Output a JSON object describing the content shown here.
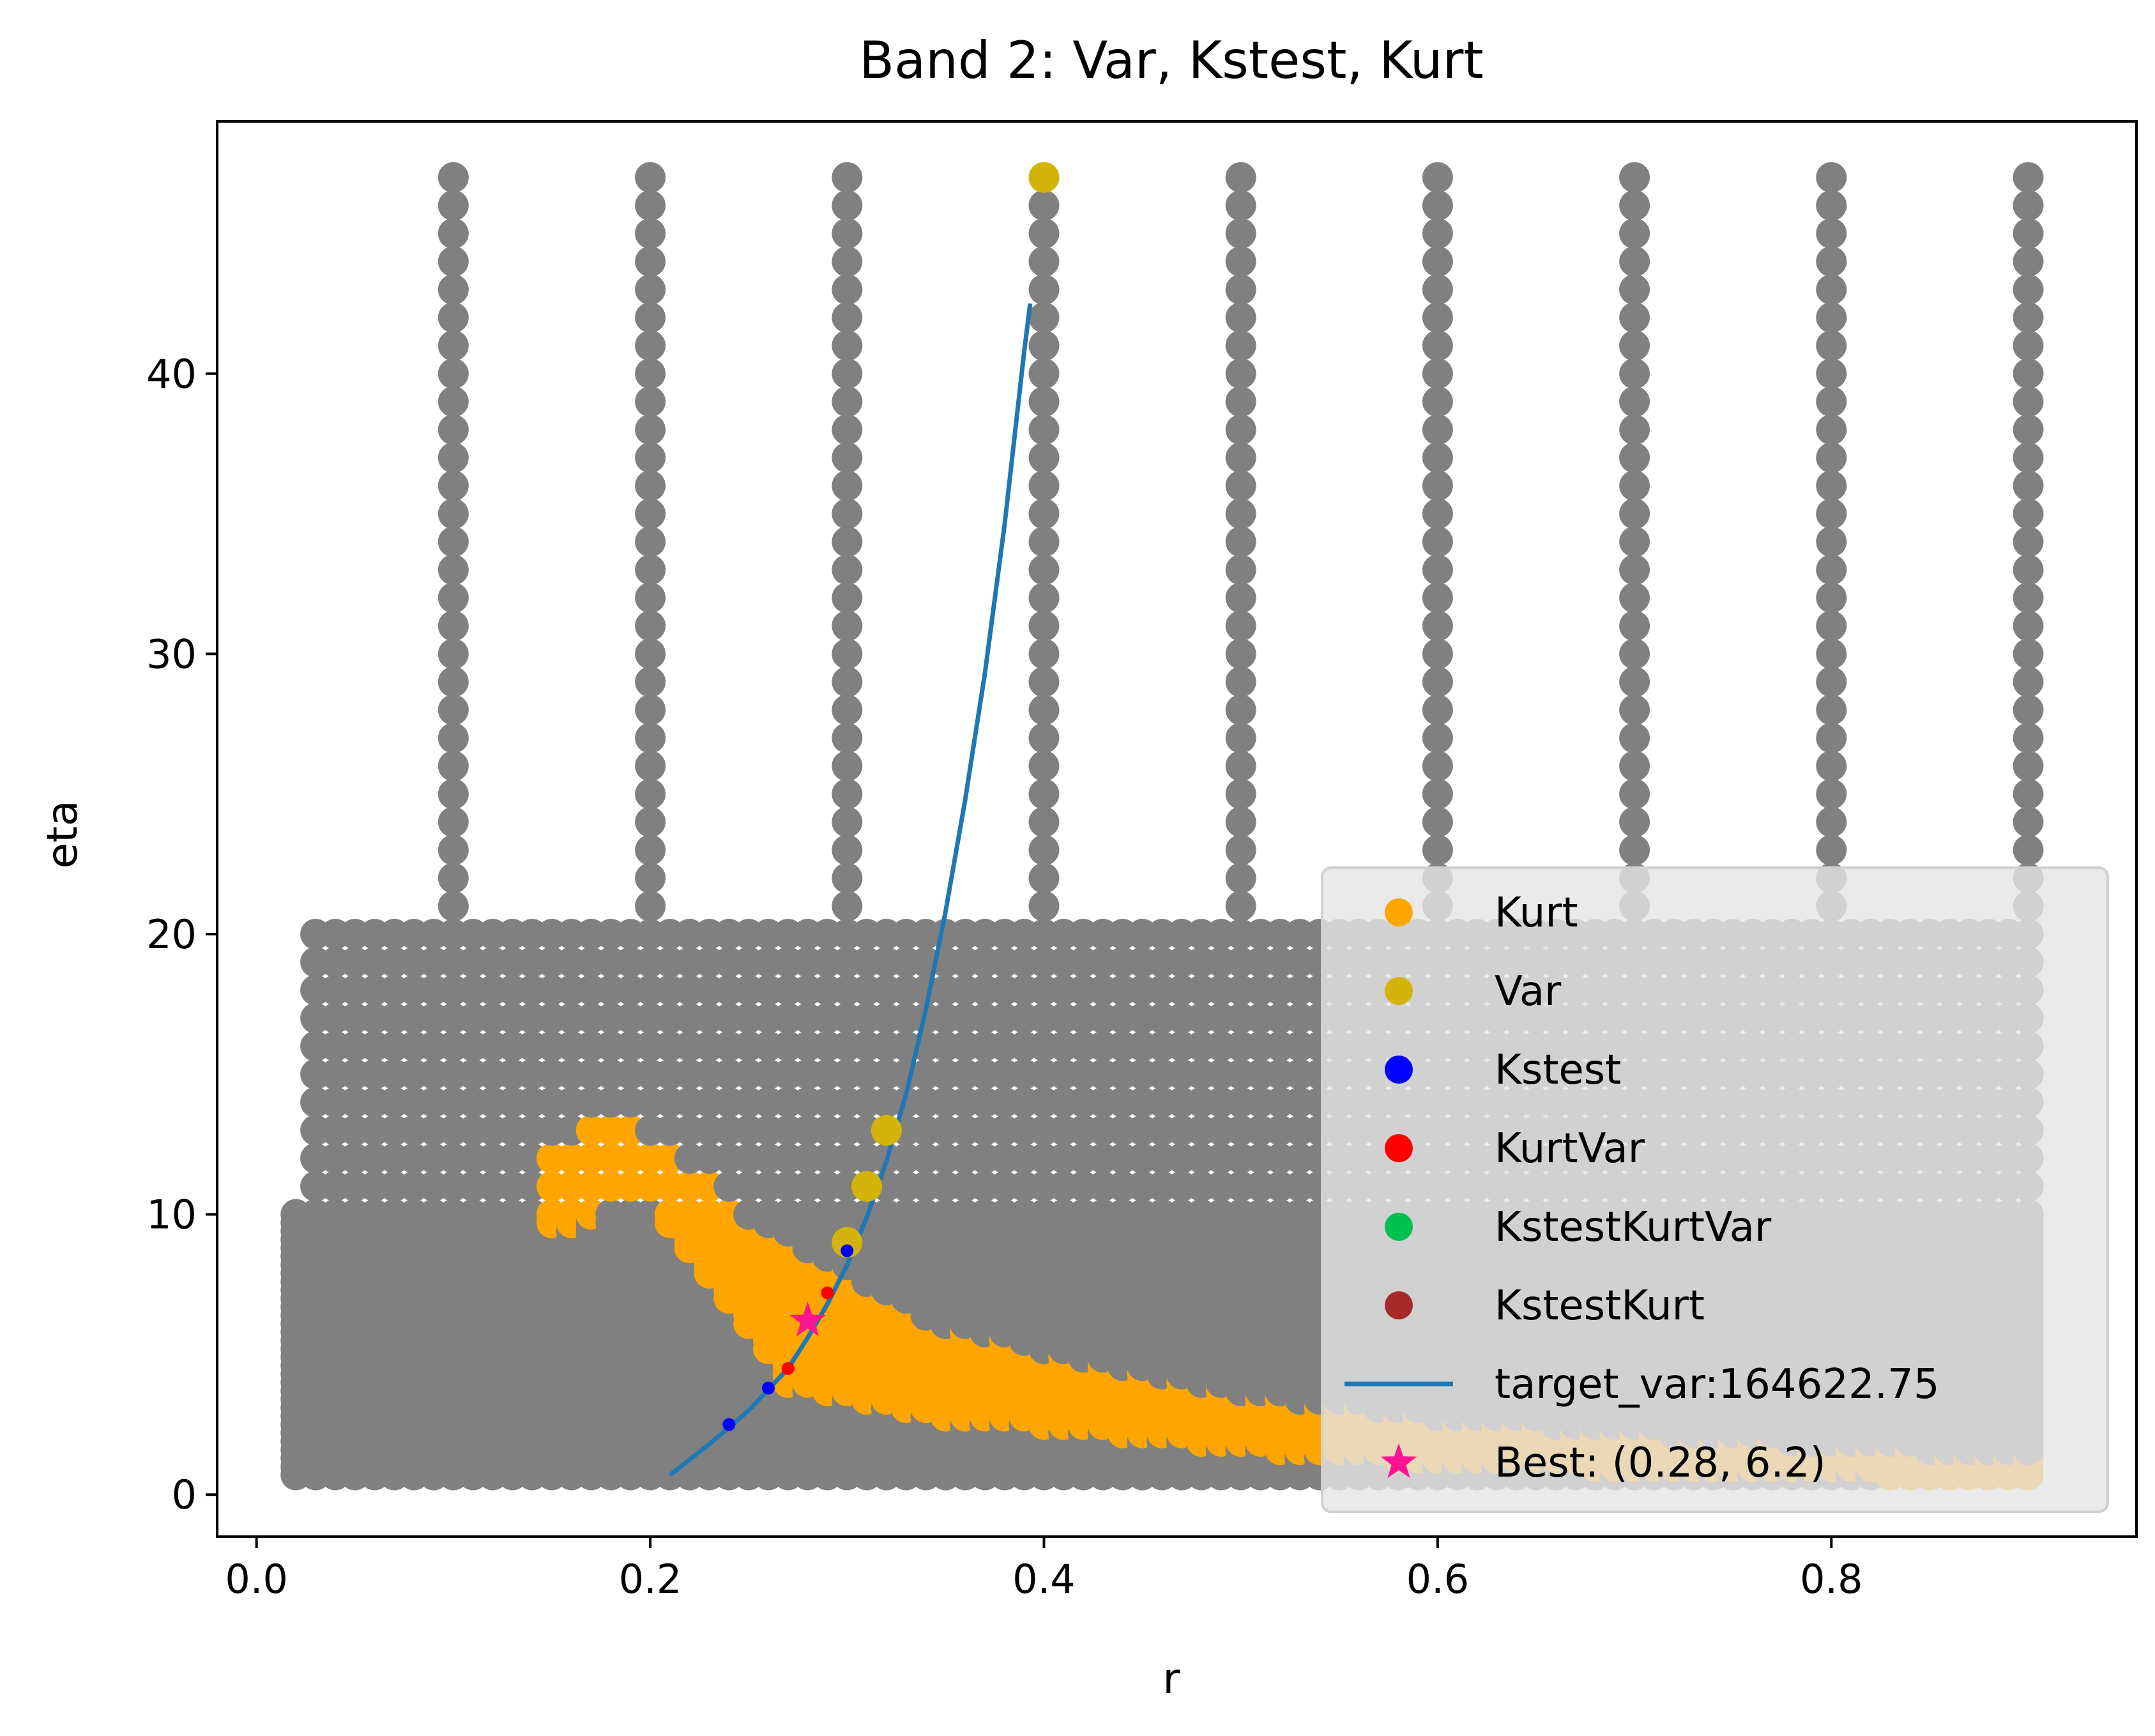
{
  "chart_data": {
    "type": "scatter",
    "title": "Band 2: Var, Kstest, Kurt",
    "xlabel": "r",
    "ylabel": "eta",
    "xlim": [
      -0.02,
      0.955
    ],
    "ylim": [
      -1.5,
      49
    ],
    "x_ticks": [
      0.0,
      0.2,
      0.4,
      0.6,
      0.8
    ],
    "x_tick_labels": [
      "0.0",
      "0.2",
      "0.4",
      "0.6",
      "0.8"
    ],
    "y_ticks": [
      0,
      10,
      20,
      30,
      40
    ],
    "y_tick_labels": [
      "0",
      "10",
      "20",
      "30",
      "40"
    ],
    "grid": false,
    "legend_position": "lower-right",
    "colors": {
      "grid_points": "#808080",
      "kurt": "#FFA500",
      "var": "#D4B40A",
      "kstest": "#0000FF",
      "kurtvar": "#FF0000",
      "kstestkurtvar": "#00C050",
      "kstestkurt": "#A52A2A",
      "target_line": "#1F77B4",
      "best": "#FF1493"
    },
    "grid_points_description_values": {
      "dense_r_range": [
        0.02,
        0.9
      ],
      "dense_r_step": 0.01,
      "dense_eta_low_range": [
        0.7,
        10
      ],
      "dense_eta_low_step": 0.1,
      "sparse_r_range": [
        0.03,
        0.9
      ],
      "sparse_eta_mid_range": [
        11,
        20
      ],
      "sparse_eta_mid_step": 1,
      "column_r_values": [
        0.1,
        0.2,
        0.3,
        0.4,
        0.5,
        0.6,
        0.7,
        0.8,
        0.9
      ],
      "column_eta_range": [
        21,
        47
      ],
      "column_eta_step": 1
    },
    "kurt_region": {
      "eta_peak_at_r": 0.175,
      "eta_peak": 14,
      "lower_boundary": [
        [
          0.27,
          4
        ],
        [
          0.35,
          2.8
        ],
        [
          0.5,
          1.7
        ],
        [
          0.6,
          1.2
        ],
        [
          0.75,
          0.8
        ],
        [
          0.9,
          0.6
        ]
      ],
      "upper_boundary": [
        [
          0.15,
          12
        ],
        [
          0.175,
          14
        ],
        [
          0.25,
          10
        ],
        [
          0.35,
          6
        ],
        [
          0.5,
          3.6
        ],
        [
          0.6,
          2.8
        ],
        [
          0.75,
          2
        ],
        [
          0.9,
          1.4
        ]
      ]
    },
    "var_points": [
      [
        0.4,
        47
      ],
      [
        0.32,
        13
      ],
      [
        0.31,
        11
      ],
      [
        0.3,
        9
      ]
    ],
    "kstest_points": [
      [
        0.3,
        8.7
      ],
      [
        0.26,
        3.8
      ],
      [
        0.24,
        2.5
      ]
    ],
    "kurtvar_points": [
      [
        0.29,
        7.2
      ],
      [
        0.27,
        4.5
      ]
    ],
    "series": [
      {
        "name": "Kurt",
        "marker": "circle"
      },
      {
        "name": "Var",
        "marker": "circle"
      },
      {
        "name": "Kstest",
        "marker": "circle"
      },
      {
        "name": "KurtVar",
        "marker": "circle"
      },
      {
        "name": "KstestKurtVar",
        "marker": "circle"
      },
      {
        "name": "KstestKurt",
        "marker": "circle"
      },
      {
        "name": "target_var:164622.75",
        "marker": "line"
      },
      {
        "name": "Best: (0.28, 6.2)",
        "marker": "star"
      }
    ],
    "target_var_curve": {
      "x": [
        0.21,
        0.23,
        0.25,
        0.27,
        0.28,
        0.29,
        0.3,
        0.31,
        0.32,
        0.33,
        0.34,
        0.35,
        0.36,
        0.37,
        0.38,
        0.39,
        0.393
      ],
      "y": [
        0.7,
        1.8,
        3.0,
        4.5,
        5.6,
        6.8,
        8.2,
        9.9,
        11.9,
        14.3,
        17.3,
        20.8,
        24.8,
        29.3,
        34.6,
        40.8,
        42.5
      ]
    },
    "best_point": {
      "r": 0.28,
      "eta": 6.2
    }
  }
}
